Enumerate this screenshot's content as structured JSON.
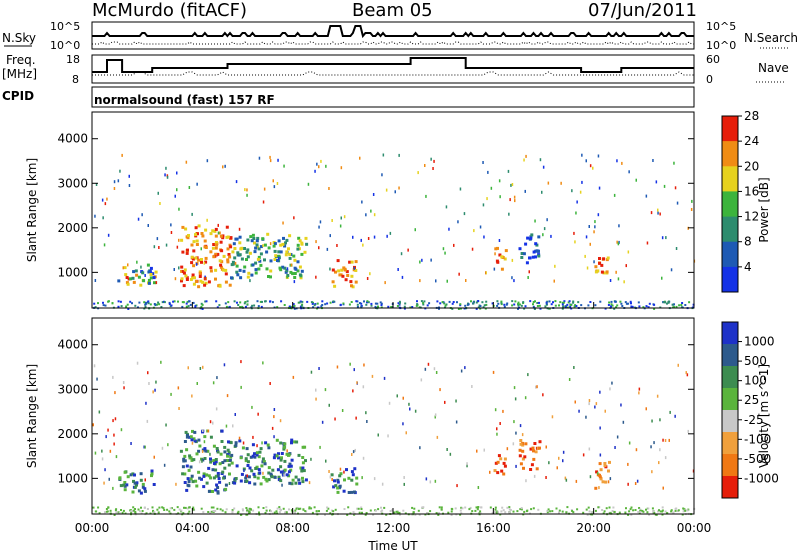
{
  "header": {
    "station": "McMurdo (fitACF)",
    "beam": "Beam 05",
    "date": "07/Jun/2011"
  },
  "noise_panel": {
    "left_label": "N.Sky",
    "right_label": "N.Search",
    "left_ticks": [
      "10^5",
      "10^0"
    ],
    "right_ticks": [
      "10^5",
      "10^0"
    ]
  },
  "freq_panel": {
    "left_label_line1": "Freq.",
    "left_label_line2": "[MHz]",
    "right_label": "Nave",
    "left_ticks": [
      "18",
      "8"
    ],
    "right_ticks": [
      "60",
      "0"
    ]
  },
  "cpid_panel": {
    "left_label": "CPID",
    "text": "normalsound (fast) 157 RF"
  },
  "chart_data": [
    {
      "type": "heatmap",
      "title": "Power",
      "ylabel": "Slant Range [km]",
      "y_ticks": [
        "1000",
        "2000",
        "3000",
        "4000"
      ],
      "ylim": [
        200,
        4600
      ],
      "colorbar_label": "Power [dB]",
      "colorbar_ticks": [
        "4",
        "8",
        "12",
        "16",
        "20",
        "24",
        "28"
      ],
      "colorbar_colors": [
        "#1432e6",
        "#1e5ab4",
        "#2d8c6e",
        "#3cb43c",
        "#e6d21e",
        "#f08c14",
        "#e61e0a"
      ],
      "regions": [
        {
          "t": [
            1.0,
            2.5
          ],
          "r": [
            700,
            1200
          ],
          "level": "mixed-high"
        },
        {
          "t": [
            3.5,
            5.5
          ],
          "r": [
            700,
            2100
          ],
          "level": "high"
        },
        {
          "t": [
            5.5,
            8.5
          ],
          "r": [
            900,
            1900
          ],
          "level": "mid"
        },
        {
          "t": [
            9.5,
            10.5
          ],
          "r": [
            700,
            1300
          ],
          "level": "high"
        },
        {
          "t": [
            16.0,
            16.5
          ],
          "r": [
            1100,
            1600
          ],
          "level": "high"
        },
        {
          "t": [
            17.0,
            17.8
          ],
          "r": [
            1200,
            1900
          ],
          "level": "low"
        },
        {
          "t": [
            20.0,
            20.6
          ],
          "r": [
            800,
            1400
          ],
          "level": "high"
        }
      ]
    },
    {
      "type": "heatmap",
      "title": "Velocity",
      "xlabel": "Time UT",
      "ylabel": "Slant Range [km]",
      "x_ticks": [
        "00:00",
        "04:00",
        "08:00",
        "12:00",
        "16:00",
        "20:00",
        "00:00"
      ],
      "y_ticks": [
        "1000",
        "2000",
        "3000",
        "4000"
      ],
      "ylim": [
        200,
        4600
      ],
      "colorbar_label": "Velocity [m s^-1]",
      "colorbar_ticks": [
        "1000",
        "500",
        "100",
        "25",
        "-25",
        "-100",
        "-500",
        "-1000"
      ],
      "colorbar_colors": [
        "#1e32c8",
        "#2d5a8c",
        "#3c8c50",
        "#5ab43c",
        "#c8c8c8",
        "#f0a03c",
        "#f07814",
        "#e61e0a"
      ],
      "regions": [
        {
          "t": [
            1.0,
            2.5
          ],
          "r": [
            700,
            1200
          ],
          "level": "positive"
        },
        {
          "t": [
            3.5,
            5.5
          ],
          "r": [
            700,
            2100
          ],
          "level": "positive"
        },
        {
          "t": [
            5.5,
            8.5
          ],
          "r": [
            900,
            1900
          ],
          "level": "positive"
        },
        {
          "t": [
            9.5,
            10.5
          ],
          "r": [
            700,
            1300
          ],
          "level": "positive"
        },
        {
          "t": [
            16.0,
            16.5
          ],
          "r": [
            1100,
            1600
          ],
          "level": "negative"
        },
        {
          "t": [
            17.0,
            17.8
          ],
          "r": [
            1200,
            1900
          ],
          "level": "negative"
        },
        {
          "t": [
            20.0,
            20.6
          ],
          "r": [
            800,
            1400
          ],
          "level": "negative"
        }
      ]
    }
  ]
}
